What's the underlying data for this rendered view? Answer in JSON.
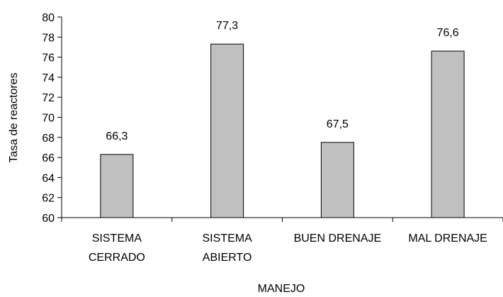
{
  "chart_data": {
    "type": "bar",
    "categories": [
      [
        "SISTEMA",
        "CERRADO"
      ],
      [
        "SISTEMA",
        "ABIERTO"
      ],
      [
        "BUEN DRENAJE"
      ],
      [
        "MAL DRENAJE"
      ]
    ],
    "values": [
      66.3,
      77.3,
      67.5,
      76.6
    ],
    "data_labels": [
      "66,3",
      "77,3",
      "67,5",
      "76,6"
    ],
    "xlabel": "MANEJO",
    "ylabel": "Tasa de reactores",
    "ylim": [
      60,
      80
    ],
    "yticks": [
      60,
      62,
      64,
      66,
      68,
      70,
      72,
      74,
      76,
      78,
      80
    ],
    "grid": false,
    "legend": "none",
    "colors": {
      "bar_fill": "#c0c0c0",
      "bar_stroke": "#000000",
      "axis": "#000000",
      "background": "#ffffff"
    }
  }
}
